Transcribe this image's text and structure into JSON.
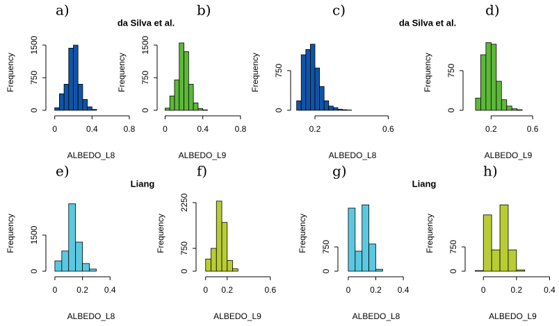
{
  "chart_data": [
    {
      "type": "histogram",
      "panel": "a)",
      "title": "da Silva et al.",
      "xlabel": "ALBEDO_L8",
      "ylabel": "Frequency",
      "color": "#0f54a8",
      "bins": [
        0,
        0.05,
        0.1,
        0.15,
        0.2,
        0.25,
        0.3,
        0.35,
        0.4,
        0.45
      ],
      "values": [
        60,
        380,
        600,
        1430,
        1500,
        600,
        250,
        80,
        20
      ],
      "xlim": [
        -0.05,
        0.83
      ],
      "ylim": [
        0,
        1740
      ],
      "xticks": [
        0,
        0.4,
        0.8
      ],
      "yticks": [
        0,
        750,
        1500
      ]
    },
    {
      "type": "histogram",
      "panel": "b)",
      "xlabel": "ALBEDO_L9",
      "ylabel": "Frequency",
      "color": "#5db83a",
      "bins": [
        0,
        0.05,
        0.1,
        0.15,
        0.2,
        0.25,
        0.3,
        0.35,
        0.4,
        0.45
      ],
      "values": [
        50,
        330,
        700,
        1550,
        1350,
        600,
        170,
        40,
        10
      ],
      "xlim": [
        -0.04,
        0.83
      ],
      "ylim": [
        0,
        1740
      ],
      "xticks": [
        0,
        0.4,
        0.8
      ],
      "yticks": [
        0,
        750,
        1500
      ]
    },
    {
      "type": "histogram",
      "panel": "c)",
      "title": "da Silva et al.",
      "xlabel": "ALBEDO_L8",
      "ylabel": "Frequency",
      "color": "#0f54a8",
      "bins": [
        0.1,
        0.125,
        0.15,
        0.175,
        0.2,
        0.225,
        0.25,
        0.275,
        0.3,
        0.325,
        0.35,
        0.375,
        0.4
      ],
      "values": [
        180,
        1050,
        1150,
        1250,
        800,
        450,
        180,
        80,
        50,
        20,
        10,
        5
      ],
      "xlim": [
        0.09,
        0.72
      ],
      "ylim": [
        0,
        1430
      ],
      "xticks": [
        0.2,
        0.6
      ],
      "yticks": [
        0,
        750
      ]
    },
    {
      "type": "histogram",
      "panel": "d)",
      "xlabel": "ALBEDO_L9",
      "ylabel": "Frequency",
      "color": "#5db83a",
      "bins": [
        0.05,
        0.1,
        0.15,
        0.2,
        0.25,
        0.3,
        0.35,
        0.4,
        0.45,
        0.5
      ],
      "values": [
        230,
        1050,
        1280,
        1250,
        550,
        200,
        80,
        30,
        10
      ],
      "xlim": [
        -0.03,
        0.76
      ],
      "ylim": [
        0,
        1430
      ],
      "xticks": [
        0.2,
        0.6
      ],
      "yticks": [
        0,
        750
      ]
    },
    {
      "type": "histogram",
      "panel": "e)",
      "title": "Liang",
      "xlabel": "ALBEDO_L8",
      "ylabel": "Frequency",
      "color": "#5bc8e0",
      "bins": [
        0,
        0.05,
        0.1,
        0.15,
        0.2,
        0.25,
        0.3
      ],
      "values": [
        430,
        840,
        2800,
        1210,
        320,
        90
      ],
      "xlim": [
        -0.035,
        0.56
      ],
      "ylim": [
        0,
        3140
      ],
      "xticks": [
        0,
        0.2,
        0.4
      ],
      "yticks": [
        0,
        1500
      ]
    },
    {
      "type": "histogram",
      "panel": "f)",
      "xlabel": "ALBEDO_L9",
      "ylabel": "Frequency",
      "color": "#b8cc33",
      "bins": [
        0,
        0.05,
        0.1,
        0.15,
        0.2,
        0.25,
        0.3
      ],
      "values": [
        400,
        750,
        2300,
        1600,
        350,
        80
      ],
      "xlim": [
        -0.05,
        0.64
      ],
      "ylim": [
        0,
        2480
      ],
      "xticks": [
        0,
        0.2,
        0.6
      ],
      "yticks": [
        0,
        750,
        2250
      ]
    },
    {
      "type": "histogram",
      "panel": "g)",
      "title": "Liang",
      "xlabel": "ALBEDO_L8",
      "ylabel": "Frequency",
      "color": "#5bc8e0",
      "bins": [
        0,
        0.05,
        0.1,
        0.15,
        0.2,
        0.25
      ],
      "values": [
        1950,
        620,
        2050,
        840,
        60
      ],
      "xlim": [
        -0.045,
        0.45
      ],
      "ylim": [
        0,
        2336
      ],
      "xticks": [
        0,
        0.2,
        0.4
      ],
      "yticks": [
        0,
        750
      ]
    },
    {
      "type": "histogram",
      "panel": "h)",
      "xlabel": "ALBEDO_L9",
      "ylabel": "Frequency",
      "color": "#b8cc33",
      "bins": [
        -0.05,
        0,
        0.05,
        0.1,
        0.15,
        0.2,
        0.25
      ],
      "values": [
        20,
        1740,
        660,
        2050,
        660,
        40
      ],
      "xlim": [
        -0.085,
        0.44
      ],
      "ylim": [
        0,
        2336
      ],
      "xticks": [
        0,
        0.2,
        0.4
      ],
      "yticks": [
        0,
        750
      ]
    }
  ]
}
